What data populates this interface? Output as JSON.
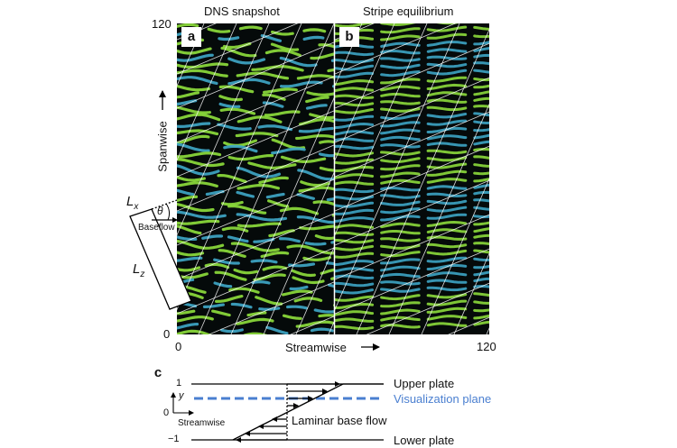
{
  "panel_a": {
    "letter": "a",
    "title": "DNS snapshot"
  },
  "panel_b": {
    "letter": "b",
    "title": "Stripe equilibrium"
  },
  "panel_c": {
    "letter": "c"
  },
  "axes": {
    "y_max": "120",
    "y_min": "0",
    "x_min": "0",
    "x_max": "120",
    "x_label": "Streamwise",
    "y_label": "Spanwise"
  },
  "domain_sketch": {
    "lx": "L",
    "lx_sub": "x",
    "lz": "L",
    "lz_sub": "z",
    "theta": "θ",
    "base_flow": "Baseflow"
  },
  "profile": {
    "tick_top": "1",
    "tick_mid": "0",
    "tick_bottom": "−1",
    "y_axis": "y",
    "streamwise": "Streamwise",
    "upper_plate": "Upper plate",
    "visualization_plane": "Visualization plane",
    "laminar_base_flow": "Laminar base flow",
    "lower_plate": "Lower plate"
  },
  "colors": {
    "field_background": "#050a0a",
    "streak_green": "#8fe03c",
    "streak_blue": "#3fa9c9",
    "visualization_plane": "#4a7fd0"
  }
}
